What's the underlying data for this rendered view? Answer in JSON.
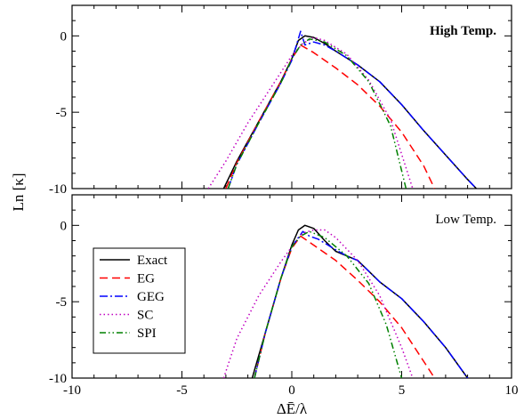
{
  "chart_data": {
    "type": "line",
    "xlabel": "ΔĒ/λ",
    "ylabel": "Ln [κ]",
    "xlim": [
      -10,
      10
    ],
    "xticks": [
      "-10",
      "-5",
      "0",
      "5",
      "10"
    ],
    "legend": {
      "placement": "bottom-left of lower panel",
      "entries": [
        {
          "name": "Exact",
          "color": "#000000",
          "dash": "solid"
        },
        {
          "name": "EG",
          "color": "#ff0000",
          "dash": "dashed"
        },
        {
          "name": "GEG",
          "color": "#0000ff",
          "dash": "dash-dot"
        },
        {
          "name": "SC",
          "color": "#c000c0",
          "dash": "dotted"
        },
        {
          "name": "SPI",
          "color": "#008000",
          "dash": "dash-dot-dot"
        }
      ]
    },
    "panels": [
      {
        "label": "High Temp.",
        "ylim": [
          -10,
          2
        ],
        "yticks": [
          "0",
          "-5",
          "-10"
        ],
        "series": [
          {
            "name": "Exact",
            "color": "#000000",
            "points": [
              [
                -3.1,
                -10
              ],
              [
                -2.5,
                -8.2
              ],
              [
                -1.5,
                -5.6
              ],
              [
                -0.5,
                -3.0
              ],
              [
                0,
                -1.5
              ],
              [
                0.3,
                -0.3
              ],
              [
                0.6,
                0
              ],
              [
                1,
                -0.1
              ],
              [
                1.5,
                -0.5
              ],
              [
                2,
                -1.0
              ],
              [
                3,
                -1.9
              ],
              [
                4,
                -3.0
              ],
              [
                5,
                -4.5
              ],
              [
                6,
                -6.2
              ],
              [
                7,
                -7.8
              ],
              [
                8,
                -9.4
              ],
              [
                8.4,
                -10
              ]
            ]
          },
          {
            "name": "EG",
            "color": "#ff0000",
            "points": [
              [
                -3.0,
                -10
              ],
              [
                -2.5,
                -8.3
              ],
              [
                -1.5,
                -5.6
              ],
              [
                -0.5,
                -3.0
              ],
              [
                0,
                -1.5
              ],
              [
                0.4,
                -0.6
              ],
              [
                1,
                -1.1
              ],
              [
                2,
                -2.1
              ],
              [
                3,
                -3.2
              ],
              [
                4,
                -4.6
              ],
              [
                5,
                -6.3
              ],
              [
                6,
                -8.5
              ],
              [
                6.5,
                -10
              ]
            ]
          },
          {
            "name": "GEG",
            "color": "#0000ff",
            "points": [
              [
                -2.9,
                -10
              ],
              [
                -2.5,
                -8.4
              ],
              [
                -1.5,
                -5.7
              ],
              [
                -0.5,
                -3.1
              ],
              [
                0,
                -1.6
              ],
              [
                0.4,
                0.3
              ],
              [
                0.6,
                -0.6
              ],
              [
                1,
                -0.4
              ],
              [
                1.5,
                -0.6
              ],
              [
                2,
                -1.0
              ],
              [
                3,
                -1.9
              ],
              [
                4,
                -3.0
              ],
              [
                5,
                -4.5
              ],
              [
                6,
                -6.2
              ],
              [
                7,
                -7.8
              ],
              [
                8,
                -9.4
              ],
              [
                8.4,
                -10
              ]
            ]
          },
          {
            "name": "SC",
            "color": "#c000c0",
            "points": [
              [
                -3.8,
                -10
              ],
              [
                -3,
                -8.2
              ],
              [
                -2,
                -5.7
              ],
              [
                -1,
                -3.5
              ],
              [
                0,
                -1.3
              ],
              [
                0.5,
                -0.5
              ],
              [
                1,
                -0.1
              ],
              [
                1.5,
                -0.3
              ],
              [
                2.5,
                -1.2
              ],
              [
                3.5,
                -2.9
              ],
              [
                4.5,
                -5.5
              ],
              [
                5.5,
                -10
              ]
            ]
          },
          {
            "name": "SPI",
            "color": "#008000",
            "points": [
              [
                -2.9,
                -10
              ],
              [
                -2.5,
                -8.4
              ],
              [
                -1.5,
                -5.7
              ],
              [
                -0.5,
                -3.1
              ],
              [
                0,
                -1.5
              ],
              [
                0.4,
                -0.6
              ],
              [
                0.8,
                -0.2
              ],
              [
                1.5,
                -0.4
              ],
              [
                2.5,
                -1.3
              ],
              [
                3.5,
                -3.0
              ],
              [
                4.5,
                -5.9
              ],
              [
                5.2,
                -10
              ]
            ]
          }
        ]
      },
      {
        "label": "Low Temp.",
        "ylim": [
          -10,
          2
        ],
        "yticks": [
          "0",
          "-5",
          "-10"
        ],
        "series": [
          {
            "name": "Exact",
            "color": "#000000",
            "points": [
              [
                -1.8,
                -10
              ],
              [
                -1.2,
                -7
              ],
              [
                -0.5,
                -3.5
              ],
              [
                0,
                -1.3
              ],
              [
                0.3,
                -0.3
              ],
              [
                0.6,
                0
              ],
              [
                1,
                -0.2
              ],
              [
                1.5,
                -1.0
              ],
              [
                2,
                -1.7
              ],
              [
                2.5,
                -2.0
              ],
              [
                3,
                -2.3
              ],
              [
                3.5,
                -3.0
              ],
              [
                4,
                -3.7
              ],
              [
                5,
                -4.8
              ],
              [
                6,
                -6.3
              ],
              [
                7,
                -8.0
              ],
              [
                8,
                -10
              ]
            ]
          },
          {
            "name": "EG",
            "color": "#ff0000",
            "points": [
              [
                -1.7,
                -10
              ],
              [
                -1.2,
                -7
              ],
              [
                -0.5,
                -3.5
              ],
              [
                0,
                -1.5
              ],
              [
                0.4,
                -0.7
              ],
              [
                1,
                -1.3
              ],
              [
                2,
                -2.3
              ],
              [
                3,
                -3.6
              ],
              [
                4,
                -5.0
              ],
              [
                5,
                -6.7
              ],
              [
                6,
                -8.9
              ],
              [
                6.5,
                -10
              ]
            ]
          },
          {
            "name": "GEG",
            "color": "#0000ff",
            "points": [
              [
                -1.7,
                -10
              ],
              [
                -1.2,
                -7
              ],
              [
                -0.5,
                -3.5
              ],
              [
                0,
                -1.4
              ],
              [
                0.5,
                -0.4
              ],
              [
                0.8,
                -0.7
              ],
              [
                1.2,
                -0.9
              ],
              [
                2,
                -1.6
              ],
              [
                2.5,
                -2.0
              ],
              [
                3,
                -2.3
              ],
              [
                3.5,
                -3.0
              ],
              [
                4,
                -3.7
              ],
              [
                5,
                -4.8
              ],
              [
                6,
                -6.3
              ],
              [
                7,
                -8.0
              ],
              [
                8,
                -10
              ]
            ]
          },
          {
            "name": "SC",
            "color": "#c000c0",
            "points": [
              [
                -3.1,
                -10
              ],
              [
                -2.5,
                -7.4
              ],
              [
                -1.5,
                -4.6
              ],
              [
                -0.5,
                -2.4
              ],
              [
                0,
                -1.4
              ],
              [
                0.5,
                -0.5
              ],
              [
                1,
                -0.3
              ],
              [
                1.5,
                -0.3
              ],
              [
                2,
                -0.8
              ],
              [
                3,
                -2.3
              ],
              [
                4,
                -4.6
              ],
              [
                5,
                -8.0
              ],
              [
                5.5,
                -10
              ]
            ]
          },
          {
            "name": "SPI",
            "color": "#008000",
            "points": [
              [
                -1.7,
                -10
              ],
              [
                -1.2,
                -7
              ],
              [
                -0.5,
                -3.5
              ],
              [
                0,
                -1.4
              ],
              [
                0.4,
                -0.7
              ],
              [
                0.8,
                -0.4
              ],
              [
                1.5,
                -0.8
              ],
              [
                2.5,
                -2.0
              ],
              [
                3.5,
                -3.8
              ],
              [
                4.3,
                -6.5
              ],
              [
                5,
                -10
              ]
            ]
          }
        ]
      }
    ]
  }
}
